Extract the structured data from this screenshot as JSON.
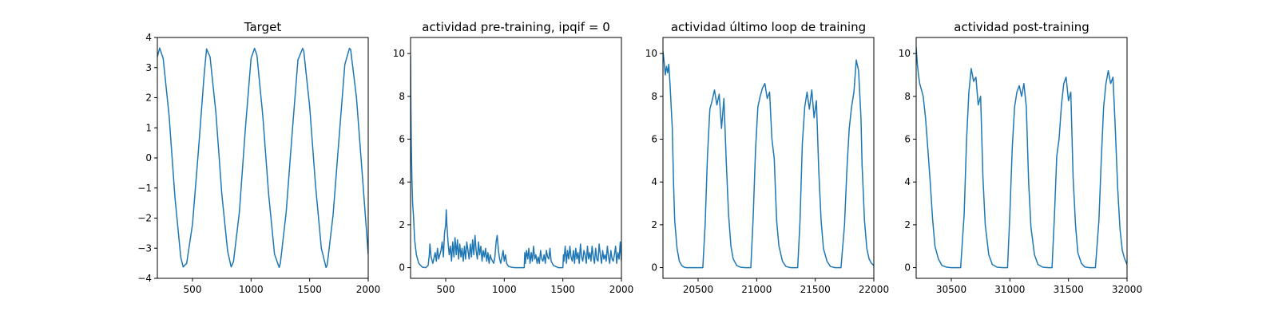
{
  "chart_data": [
    {
      "type": "line",
      "title": "Target",
      "xlabel": "",
      "ylabel": "",
      "xlim": [
        200,
        2000
      ],
      "ylim": [
        -4,
        4
      ],
      "xticks": [
        500,
        1000,
        1500,
        2000
      ],
      "yticks": [
        -4,
        -3,
        -2,
        -1,
        0,
        1,
        2,
        3,
        4
      ],
      "grid": false,
      "series": [
        {
          "color": "#1f77b4",
          "x": [
            200,
            220,
            250,
            300,
            350,
            400,
            420,
            450,
            500,
            550,
            600,
            620,
            650,
            700,
            750,
            800,
            830,
            850,
            900,
            950,
            1000,
            1030,
            1050,
            1100,
            1150,
            1200,
            1240,
            1250,
            1300,
            1350,
            1400,
            1440,
            1450,
            1500,
            1550,
            1600,
            1640,
            1650,
            1700,
            1750,
            1800,
            1840,
            1850,
            1900,
            1950,
            2000
          ],
          "values": [
            3.36,
            3.65,
            3.3,
            1.4,
            -1.3,
            -3.3,
            -3.62,
            -3.5,
            -2.2,
            0.2,
            2.8,
            3.62,
            3.35,
            1.5,
            -1.2,
            -3.1,
            -3.62,
            -3.45,
            -1.8,
            0.9,
            3.3,
            3.64,
            3.4,
            1.4,
            -1.2,
            -3.2,
            -3.64,
            -3.5,
            -1.8,
            0.8,
            3.25,
            3.64,
            3.55,
            1.7,
            -0.9,
            -3.0,
            -3.64,
            -3.55,
            -1.9,
            0.6,
            3.1,
            3.64,
            3.6,
            2.0,
            -0.6,
            -3.2
          ]
        }
      ]
    },
    {
      "type": "line",
      "title": "actividad pre-training, ipqif = 0",
      "xlabel": "",
      "ylabel": "",
      "xlim": [
        200,
        2000
      ],
      "ylim": [
        -0.5,
        10.75
      ],
      "xticks": [
        500,
        1000,
        1500,
        2000
      ],
      "yticks": [
        0,
        2,
        4,
        6,
        8,
        10
      ],
      "grid": false,
      "series": [
        {
          "color": "#1f77b4",
          "x": [
            200,
            203,
            207,
            212,
            218,
            225,
            235,
            250,
            270,
            300,
            330,
            350,
            360,
            365,
            375,
            390,
            410,
            420,
            430,
            440,
            460,
            470,
            480,
            490,
            500,
            505,
            510,
            520,
            530,
            540,
            550,
            560,
            570,
            580,
            590,
            600,
            610,
            620,
            630,
            640,
            650,
            660,
            670,
            680,
            690,
            700,
            710,
            720,
            730,
            740,
            750,
            760,
            770,
            780,
            790,
            800,
            810,
            820,
            830,
            840,
            850,
            860,
            870,
            880,
            890,
            900,
            910,
            920,
            930,
            940,
            950,
            960,
            970,
            980,
            990,
            1000,
            1010,
            1020,
            1030,
            1040,
            1060,
            1090,
            1130,
            1170,
            1175,
            1180,
            1190,
            1200,
            1210,
            1220,
            1230,
            1240,
            1250,
            1260,
            1270,
            1280,
            1290,
            1300,
            1310,
            1320,
            1330,
            1340,
            1350,
            1360,
            1370,
            1380,
            1390,
            1400,
            1410,
            1420,
            1440,
            1460,
            1480,
            1500,
            1505,
            1510,
            1520,
            1530,
            1540,
            1550,
            1560,
            1570,
            1580,
            1590,
            1600,
            1610,
            1620,
            1630,
            1640,
            1650,
            1660,
            1670,
            1680,
            1690,
            1700,
            1710,
            1720,
            1730,
            1740,
            1750,
            1760,
            1770,
            1780,
            1790,
            1800,
            1810,
            1820,
            1830,
            1840,
            1850,
            1860,
            1870,
            1880,
            1890,
            1900,
            1910,
            1920,
            1930,
            1940,
            1950,
            1960,
            1970,
            1980,
            1990,
            2000
          ],
          "values": [
            9.9,
            7.5,
            5.5,
            4.0,
            3.0,
            2.4,
            1.3,
            0.6,
            0.2,
            0.02,
            0.0,
            0.1,
            0.6,
            1.1,
            0.5,
            0.2,
            0.7,
            0.3,
            0.9,
            0.4,
            0.8,
            1.2,
            0.5,
            1.6,
            2.0,
            2.7,
            2.0,
            1.2,
            0.6,
            1.0,
            0.3,
            1.2,
            0.5,
            1.4,
            0.6,
            1.3,
            0.4,
            1.1,
            0.5,
            0.9,
            0.3,
            1.0,
            0.4,
            1.2,
            0.8,
            0.4,
            1.1,
            0.5,
            1.3,
            0.6,
            1.5,
            0.8,
            0.4,
            1.2,
            0.6,
            1.0,
            0.3,
            0.8,
            0.5,
            0.9,
            0.3,
            0.7,
            0.2,
            0.6,
            0.4,
            0.3,
            0.2,
            0.5,
            1.2,
            1.5,
            0.8,
            0.4,
            0.2,
            0.5,
            0.8,
            0.3,
            0.6,
            0.2,
            0.1,
            0.05,
            0.02,
            0.0,
            0.0,
            0.0,
            0.7,
            0.2,
            0.8,
            0.4,
            0.9,
            0.2,
            0.7,
            0.3,
            1.0,
            0.4,
            0.6,
            0.2,
            0.5,
            0.2,
            0.8,
            0.4,
            0.3,
            0.6,
            0.2,
            0.8,
            0.5,
            0.4,
            0.9,
            0.3,
            0.2,
            0.1,
            0.05,
            0.0,
            0.0,
            0.0,
            0.6,
            0.3,
            1.0,
            0.2,
            0.8,
            0.4,
            1.0,
            0.5,
            0.3,
            0.8,
            0.2,
            0.9,
            0.4,
            0.7,
            0.2,
            1.1,
            0.5,
            0.3,
            0.8,
            0.6,
            0.2,
            1.0,
            0.4,
            0.7,
            0.3,
            1.0,
            0.5,
            0.2,
            0.9,
            0.4,
            0.3,
            1.1,
            0.6,
            0.2,
            0.8,
            0.4,
            0.6,
            0.3,
            1.0,
            0.5,
            0.2,
            0.8,
            0.4,
            0.3,
            0.6,
            1.0,
            0.2,
            0.7,
            0.4,
            1.2,
            0.3
          ]
        }
      ]
    },
    {
      "type": "line",
      "title": "actividad último loop de training",
      "xlabel": "",
      "ylabel": "",
      "xlim": [
        20200,
        22000
      ],
      "ylim": [
        -0.5,
        10.75
      ],
      "xticks": [
        20500,
        21000,
        21500,
        22000
      ],
      "yticks": [
        0,
        2,
        4,
        6,
        8,
        10
      ],
      "grid": false,
      "series": [
        {
          "color": "#1f77b4",
          "x": [
            20200,
            20210,
            20220,
            20230,
            20240,
            20250,
            20260,
            20270,
            20280,
            20290,
            20300,
            20320,
            20340,
            20360,
            20380,
            20400,
            20430,
            20460,
            20500,
            20540,
            20560,
            20580,
            20600,
            20620,
            20640,
            20660,
            20680,
            20700,
            20720,
            20740,
            20760,
            20780,
            20800,
            20830,
            20860,
            20900,
            20950,
            20970,
            20990,
            21010,
            21030,
            21050,
            21070,
            21090,
            21110,
            21130,
            21150,
            21170,
            21190,
            21220,
            21250,
            21290,
            21350,
            21370,
            21390,
            21410,
            21430,
            21450,
            21470,
            21490,
            21510,
            21530,
            21550,
            21570,
            21600,
            21630,
            21670,
            21720,
            21750,
            21770,
            21790,
            21810,
            21830,
            21850,
            21870,
            21890,
            21900,
            21920,
            21940,
            21960,
            21980,
            22000
          ],
          "values": [
            10.1,
            9.6,
            9.0,
            9.4,
            9.1,
            9.5,
            8.6,
            7.5,
            6.5,
            4.0,
            2.2,
            0.9,
            0.3,
            0.1,
            0.02,
            0.0,
            0.0,
            0.0,
            0.0,
            0.0,
            2.0,
            5.2,
            7.4,
            7.8,
            8.3,
            7.6,
            8.1,
            6.5,
            7.9,
            5.0,
            2.5,
            1.0,
            0.4,
            0.1,
            0.02,
            0.0,
            0.0,
            2.3,
            5.5,
            7.5,
            8.0,
            8.4,
            8.6,
            7.9,
            8.2,
            6.0,
            5.1,
            2.2,
            1.0,
            0.3,
            0.05,
            0.0,
            0.0,
            2.2,
            5.8,
            7.5,
            8.2,
            7.4,
            8.3,
            7.0,
            7.8,
            4.5,
            2.2,
            0.9,
            0.3,
            0.05,
            0.0,
            0.0,
            2.0,
            4.6,
            6.5,
            7.5,
            8.2,
            9.7,
            9.2,
            7.0,
            4.8,
            2.2,
            0.9,
            0.4,
            0.2,
            0.1
          ]
        }
      ]
    },
    {
      "type": "line",
      "title": "actividad post-training",
      "xlabel": "",
      "ylabel": "",
      "xlim": [
        30200,
        32000
      ],
      "ylim": [
        -0.5,
        10.75
      ],
      "xticks": [
        30500,
        31000,
        31500,
        32000
      ],
      "yticks": [
        0,
        2,
        4,
        6,
        8,
        10
      ],
      "grid": false,
      "series": [
        {
          "color": "#1f77b4",
          "x": [
            30200,
            30210,
            30220,
            30230,
            30240,
            30260,
            30280,
            30300,
            30320,
            30340,
            30360,
            30390,
            30420,
            30460,
            30500,
            30550,
            30580,
            30610,
            30630,
            30650,
            30670,
            30690,
            30710,
            30730,
            30750,
            30770,
            30790,
            30820,
            30850,
            30890,
            30940,
            30980,
            31000,
            31020,
            31040,
            31060,
            31080,
            31100,
            31120,
            31140,
            31160,
            31180,
            31210,
            31240,
            31280,
            31330,
            31360,
            31380,
            31400,
            31420,
            31440,
            31460,
            31480,
            31500,
            31520,
            31540,
            31560,
            31580,
            31610,
            31640,
            31680,
            31730,
            31760,
            31780,
            31800,
            31820,
            31840,
            31860,
            31880,
            31900,
            31920,
            31940,
            31960,
            31980,
            32000
          ],
          "values": [
            10.3,
            9.5,
            9.0,
            8.6,
            8.4,
            8.0,
            7.0,
            5.5,
            4.0,
            2.3,
            1.0,
            0.4,
            0.1,
            0.02,
            0.0,
            0.0,
            0.0,
            2.5,
            6.0,
            8.2,
            9.3,
            8.7,
            8.9,
            7.6,
            8.0,
            4.2,
            2.0,
            0.6,
            0.15,
            0.02,
            0.0,
            0.0,
            2.5,
            5.6,
            7.5,
            8.2,
            8.5,
            8.0,
            8.6,
            7.5,
            4.0,
            1.9,
            0.6,
            0.15,
            0.02,
            0.0,
            0.0,
            2.4,
            5.2,
            6.0,
            7.6,
            8.6,
            8.9,
            7.8,
            8.2,
            4.2,
            2.0,
            0.7,
            0.2,
            0.03,
            0.0,
            0.0,
            2.2,
            5.0,
            7.5,
            8.6,
            9.2,
            8.6,
            8.9,
            6.5,
            3.7,
            1.8,
            0.8,
            0.4,
            0.15
          ]
        }
      ]
    }
  ]
}
